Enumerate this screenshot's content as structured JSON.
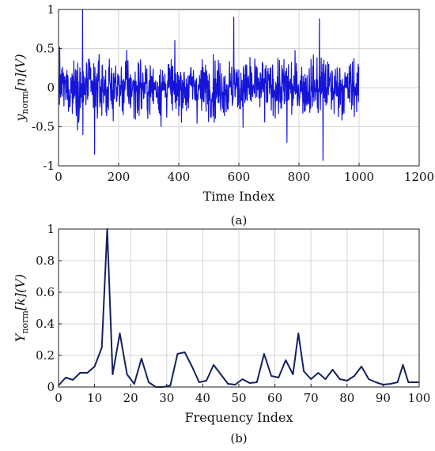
{
  "chart_data": [
    {
      "type": "line",
      "panel": "(a)",
      "xlabel": "Time Index",
      "ylabel_main": "y",
      "ylabel_sub": "norm",
      "ylabel_tail": "[n](V)",
      "xlim": [
        0,
        1200
      ],
      "ylim": [
        -1,
        1
      ],
      "xticks": [
        0,
        200,
        400,
        600,
        800,
        1000,
        1200
      ],
      "yticks": [
        -1,
        -0.5,
        0,
        0.5,
        1
      ],
      "grid": true,
      "color": "#1515d8",
      "n_samples": 1000,
      "series": [
        {
          "x_start": 0,
          "x_step": 1,
          "values": "dense noise-like signal of 1000 samples, mostly within [-0.5, 0.6], peak 1.0 near index 80, minimum about -0.93 near index 880"
        }
      ]
    },
    {
      "type": "line",
      "panel": "(b)",
      "xlabel": "Frequency Index",
      "ylabel_main": "Y",
      "ylabel_sub": "norm",
      "ylabel_tail": "[k](V)",
      "xlim": [
        0,
        100
      ],
      "ylim": [
        0,
        1
      ],
      "xticks": [
        0,
        10,
        20,
        30,
        40,
        50,
        60,
        70,
        80,
        90,
        100
      ],
      "yticks": [
        0,
        0.2,
        0.4,
        0.6,
        0.8,
        1
      ],
      "grid": true,
      "color": "#14215e",
      "series": [
        {
          "x": [
            0,
            2,
            4,
            6,
            8,
            10,
            12,
            13.5,
            15,
            17,
            19,
            21,
            23,
            25,
            27,
            29,
            31,
            33,
            35,
            37,
            39,
            41,
            43,
            45,
            47,
            49,
            51,
            53,
            55,
            57,
            59,
            61,
            63,
            65,
            66.5,
            68,
            70,
            72,
            74,
            76,
            78,
            80,
            82,
            84,
            86,
            88,
            90,
            92,
            94,
            95.5,
            97,
            99,
            100
          ],
          "y": [
            0.01,
            0.06,
            0.045,
            0.09,
            0.09,
            0.13,
            0.25,
            1.0,
            0.08,
            0.34,
            0.08,
            0.02,
            0.18,
            0.03,
            0.0,
            0.0,
            0.01,
            0.21,
            0.22,
            0.13,
            0.03,
            0.04,
            0.14,
            0.08,
            0.02,
            0.015,
            0.05,
            0.025,
            0.03,
            0.21,
            0.07,
            0.06,
            0.17,
            0.08,
            0.34,
            0.1,
            0.05,
            0.09,
            0.05,
            0.11,
            0.05,
            0.04,
            0.07,
            0.13,
            0.05,
            0.03,
            0.015,
            0.02,
            0.03,
            0.14,
            0.03,
            0.03,
            0.03
          ]
        }
      ]
    }
  ],
  "captions": {
    "a": "(a)",
    "b": "(b)"
  }
}
